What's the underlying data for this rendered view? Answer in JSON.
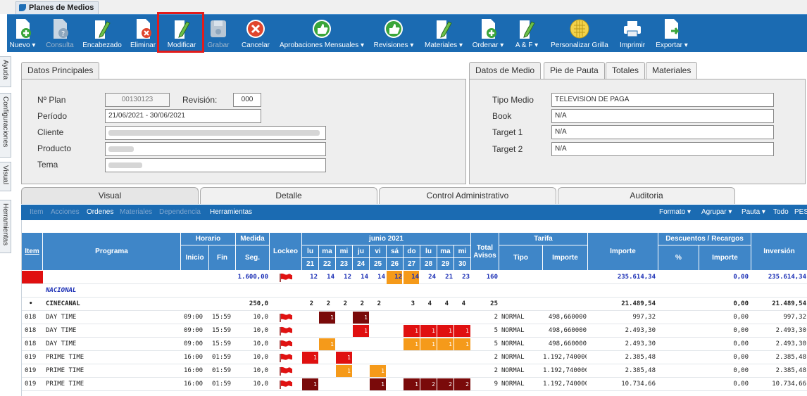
{
  "window": {
    "title": "Planes de Medios"
  },
  "toolbar": {
    "items": [
      {
        "label": "Nuevo ▾",
        "icon": "new-doc-icon"
      },
      {
        "label": "Consulta",
        "icon": "query-doc-icon",
        "disabled": true
      },
      {
        "label": "Encabezado",
        "icon": "header-edit-icon"
      },
      {
        "label": "Eliminar",
        "icon": "delete-doc-icon"
      },
      {
        "label": "Modificar",
        "icon": "edit-doc-icon"
      },
      {
        "label": "Grabar",
        "icon": "save-icon",
        "disabled": true
      },
      {
        "label": "Cancelar",
        "icon": "cancel-icon"
      },
      {
        "label": "Aprobaciones Mensuales ▾",
        "icon": "thumbs-up-icon"
      },
      {
        "label": "Revisiones ▾",
        "icon": "thumbs-up-icon"
      },
      {
        "label": "Materiales ▾",
        "icon": "materials-icon"
      },
      {
        "label": "Ordenar ▾",
        "icon": "order-icon"
      },
      {
        "label": "A & F ▾",
        "icon": "af-icon"
      },
      {
        "label": "Personalizar Grilla",
        "icon": "grid-icon"
      },
      {
        "label": "Imprimir",
        "icon": "printer-icon"
      },
      {
        "label": "Exportar ▾",
        "icon": "export-icon"
      }
    ]
  },
  "side_tabs": [
    "Ayuda",
    "Configuraciones",
    "Visual",
    "Herramientas"
  ],
  "datos_principales": {
    "tab": "Datos Principales",
    "plan_label": "Nº Plan",
    "plan_value": "00130123",
    "revision_label": "Revisión:",
    "revision_value": "000",
    "periodo_label": "Período",
    "periodo_value": "21/06/2021 - 30/06/2021",
    "cliente_label": "Cliente",
    "producto_label": "Producto",
    "tema_label": "Tema"
  },
  "datos_medio": {
    "tabs": [
      "Datos de Medio",
      "Pie de Pauta",
      "Totales",
      "Materiales"
    ],
    "tipo_label": "Tipo Medio",
    "tipo_value": "TELEVISION DE PAGA",
    "book_label": "Book",
    "book_value": "N/A",
    "target1_label": "Target 1",
    "target1_value": "N/A",
    "target2_label": "Target 2",
    "target2_value": "N/A"
  },
  "main_tabs": [
    "Visual",
    "Detalle",
    "Control Administrativo",
    "Auditoria"
  ],
  "subbar": {
    "left": [
      "Item",
      "Acciones",
      "Ordenes",
      "Materiales",
      "Dependencia",
      "Herramientas"
    ],
    "right": [
      "Formato ▾",
      "Agrupar ▾",
      "Pauta ▾",
      "Todo",
      "PES"
    ]
  },
  "grid": {
    "headers": {
      "item": "Item",
      "programa": "Programa",
      "horario": "Horario",
      "inicio": "Inicio",
      "fin": "Fin",
      "medida": "Medida",
      "seg": "Seg.",
      "lockeo": "Lockeo",
      "month": "junio 2021",
      "total": "Total",
      "avisos": "Avisos",
      "tarifa": "Tarifa",
      "tipo": "Tipo",
      "importe_t": "Importe",
      "importe": "Importe",
      "descuentos": "Descuentos / Recargos",
      "pct": "%",
      "importe_d": "Importe",
      "inversion": "Inversión"
    },
    "days": [
      {
        "dow": "lu",
        "num": "21"
      },
      {
        "dow": "ma",
        "num": "22"
      },
      {
        "dow": "mi",
        "num": "23"
      },
      {
        "dow": "ju",
        "num": "24"
      },
      {
        "dow": "vi",
        "num": "25"
      },
      {
        "dow": "sá",
        "num": "26"
      },
      {
        "dow": "do",
        "num": "27"
      },
      {
        "dow": "lu",
        "num": "28"
      },
      {
        "dow": "ma",
        "num": "29"
      },
      {
        "dow": "mi",
        "num": "30"
      }
    ],
    "total_row": {
      "medida": "1.600,00",
      "days": [
        "12",
        "14",
        "12",
        "14",
        "14",
        "12",
        "14",
        "24",
        "21",
        "23"
      ],
      "avisos": "160",
      "importe": "235.614,34",
      "desc_importe": "0,00",
      "inversion": "235.614,34"
    },
    "nacional_label": "NACIONAL",
    "group_row": {
      "marker": "•",
      "programa": "CINECANAL",
      "medida": "250,0",
      "days": [
        "2",
        "2",
        "2",
        "2",
        "2",
        "",
        "3",
        "4",
        "4",
        "4"
      ],
      "avisos": "25",
      "importe": "21.489,54",
      "desc_importe": "0,00",
      "inversion": "21.489,54"
    },
    "rows": [
      {
        "item": "018",
        "programa": "DAY TIME",
        "inicio": "09:00",
        "fin": "15:59",
        "seg": "10,0",
        "cells": [
          null,
          [
            "dark",
            "1"
          ],
          null,
          [
            "dark",
            "1"
          ],
          null,
          null,
          null,
          null,
          null,
          null
        ],
        "avisos": "2",
        "tipo": "NORMAL",
        "tarifa": "498,660000",
        "importe": "997,32",
        "desc": "0,00",
        "inversion": "997,32"
      },
      {
        "item": "018",
        "programa": "DAY TIME",
        "inicio": "09:00",
        "fin": "15:59",
        "seg": "10,0",
        "cells": [
          null,
          null,
          null,
          [
            "red",
            "1"
          ],
          null,
          null,
          [
            "red",
            "1"
          ],
          [
            "red",
            "1"
          ],
          [
            "red",
            "1"
          ],
          [
            "red",
            "1"
          ]
        ],
        "avisos": "5",
        "tipo": "NORMAL",
        "tarifa": "498,660000",
        "importe": "2.493,30",
        "desc": "0,00",
        "inversion": "2.493,30"
      },
      {
        "item": "018",
        "programa": "DAY TIME",
        "inicio": "09:00",
        "fin": "15:59",
        "seg": "10,0",
        "cells": [
          null,
          [
            "org",
            "1"
          ],
          null,
          null,
          null,
          null,
          [
            "org",
            "1"
          ],
          [
            "org",
            "1"
          ],
          [
            "org",
            "1"
          ],
          [
            "org",
            "1"
          ]
        ],
        "avisos": "5",
        "tipo": "NORMAL",
        "tarifa": "498,660000",
        "importe": "2.493,30",
        "desc": "0,00",
        "inversion": "2.493,30"
      },
      {
        "item": "019",
        "programa": "PRIME TIME",
        "inicio": "16:00",
        "fin": "01:59",
        "seg": "10,0",
        "cells": [
          [
            "red",
            "1"
          ],
          null,
          [
            "red",
            "1"
          ],
          null,
          null,
          null,
          null,
          null,
          null,
          null
        ],
        "avisos": "2",
        "tipo": "NORMAL",
        "tarifa": "1.192,740000",
        "importe": "2.385,48",
        "desc": "0,00",
        "inversion": "2.385,48"
      },
      {
        "item": "019",
        "programa": "PRIME TIME",
        "inicio": "16:00",
        "fin": "01:59",
        "seg": "10,0",
        "cells": [
          null,
          null,
          [
            "org",
            "1"
          ],
          null,
          [
            "org",
            "1"
          ],
          null,
          null,
          null,
          null,
          null
        ],
        "avisos": "2",
        "tipo": "NORMAL",
        "tarifa": "1.192,740000",
        "importe": "2.385,48",
        "desc": "0,00",
        "inversion": "2.385,48"
      },
      {
        "item": "019",
        "programa": "PRIME TIME",
        "inicio": "16:00",
        "fin": "01:59",
        "seg": "10,0",
        "cells": [
          [
            "dark",
            "1"
          ],
          null,
          null,
          null,
          [
            "dark",
            "1"
          ],
          null,
          [
            "dark",
            "1"
          ],
          [
            "dark",
            "2"
          ],
          [
            "dark",
            "2"
          ],
          [
            "dark",
            "2"
          ]
        ],
        "avisos": "9",
        "tipo": "NORMAL",
        "tarifa": "1.192,740000",
        "importe": "10.734,66",
        "desc": "0,00",
        "inversion": "10.734,66"
      }
    ]
  },
  "colors": {
    "toolbar": "#1b6bb2",
    "header": "#3f86c8",
    "cell_dark": "#7a0a0a",
    "cell_red": "#e01010",
    "cell_orange": "#f59a1a",
    "highlight": "#e21b1b"
  }
}
